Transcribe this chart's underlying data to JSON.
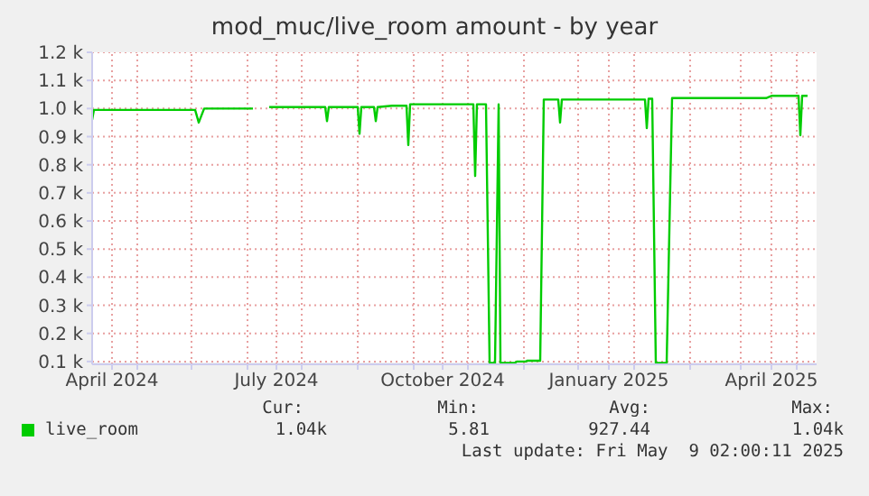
{
  "chart_data": {
    "type": "line",
    "title": "mod_muc/live_room amount - by year",
    "x": [
      "2024-03-21",
      "2024-03-22",
      "2024-05-17",
      "2024-05-19",
      "2024-05-22",
      "2024-06-18",
      "2024-06-24",
      "2024-06-27",
      "2024-07-28",
      "2024-07-29",
      "2024-07-30",
      "2024-08-15",
      "2024-08-16",
      "2024-08-17",
      "2024-08-24",
      "2024-08-25",
      "2024-08-26",
      "2024-09-03",
      "2024-09-11",
      "2024-09-12",
      "2024-09-13",
      "2024-10-18",
      "2024-10-19",
      "2024-10-20",
      "2024-10-25",
      "2024-10-27",
      "2024-10-30",
      "2024-11-01",
      "2024-11-02",
      "2024-11-10",
      "2024-11-11",
      "2024-11-16",
      "2024-11-17",
      "2024-11-24",
      "2024-11-26",
      "2024-12-04",
      "2024-12-05",
      "2024-12-06",
      "2025-01-21",
      "2025-01-22",
      "2025-01-23",
      "2025-01-25",
      "2025-01-27",
      "2025-02-02",
      "2025-02-05",
      "2025-03-29",
      "2025-04-01",
      "2025-04-16",
      "2025-04-17",
      "2025-04-18",
      "2025-04-21"
    ],
    "series": [
      {
        "name": "live_room",
        "color": "#00cc00",
        "values": [
          960,
          995,
          995,
          950,
          1000,
          1000,
          null,
          1005,
          1005,
          955,
          1005,
          1005,
          910,
          1005,
          1005,
          955,
          1005,
          1010,
          1010,
          870,
          1015,
          1015,
          760,
          1015,
          1015,
          95,
          95,
          1015,
          95,
          95,
          100,
          100,
          103,
          103,
          1032,
          1032,
          950,
          1032,
          1032,
          930,
          1035,
          1035,
          95,
          95,
          1037,
          1037,
          1045,
          1045,
          905,
          1045,
          1045
        ]
      }
    ],
    "xlim": [
      "2024-03-21",
      "2025-04-26"
    ],
    "xticks": [
      {
        "value": "2024-04-01",
        "label": "April 2024"
      },
      {
        "value": "2024-07-01",
        "label": "July 2024"
      },
      {
        "value": "2024-10-01",
        "label": "October 2024"
      },
      {
        "value": "2025-01-01",
        "label": "January 2025"
      },
      {
        "value": "2025-04-01",
        "label": "April 2025"
      },
      {
        "value": "2024-04-15",
        "label": null
      },
      {
        "value": "2024-05-15",
        "label": null
      },
      {
        "value": "2024-06-15",
        "label": null
      },
      {
        "value": "2024-07-15",
        "label": null
      },
      {
        "value": "2024-08-15",
        "label": null
      },
      {
        "value": "2024-09-15",
        "label": null
      },
      {
        "value": "2024-10-15",
        "label": null
      },
      {
        "value": "2024-11-15",
        "label": null
      },
      {
        "value": "2024-12-15",
        "label": null
      },
      {
        "value": "2025-01-15",
        "label": null
      },
      {
        "value": "2025-02-15",
        "label": null
      },
      {
        "value": "2025-03-15",
        "label": null
      },
      {
        "value": "2025-04-15",
        "label": null
      }
    ],
    "ylim": [
      90,
      1200
    ],
    "yticks": [
      {
        "value": 100,
        "label": "0.1 k"
      },
      {
        "value": 200,
        "label": "0.2 k"
      },
      {
        "value": 300,
        "label": "0.3 k"
      },
      {
        "value": 400,
        "label": "0.4 k"
      },
      {
        "value": 500,
        "label": "0.5 k"
      },
      {
        "value": 600,
        "label": "0.6 k"
      },
      {
        "value": 700,
        "label": "0.7 k"
      },
      {
        "value": 800,
        "label": "0.8 k"
      },
      {
        "value": 900,
        "label": "0.9 k"
      },
      {
        "value": 1000,
        "label": "1.0 k"
      },
      {
        "value": 1100,
        "label": "1.1 k"
      },
      {
        "value": 1200,
        "label": "1.2 k"
      }
    ],
    "grid": true,
    "legend": "bottom left",
    "line_style": "solid",
    "marker": "none",
    "annotations": [
      "Cur:",
      "Min:",
      "Avg:",
      "Max:",
      "1.04k",
      "5.81",
      "927.44",
      "1.04k",
      "Last update: Fri May  9 02:00:11 2025"
    ]
  }
}
